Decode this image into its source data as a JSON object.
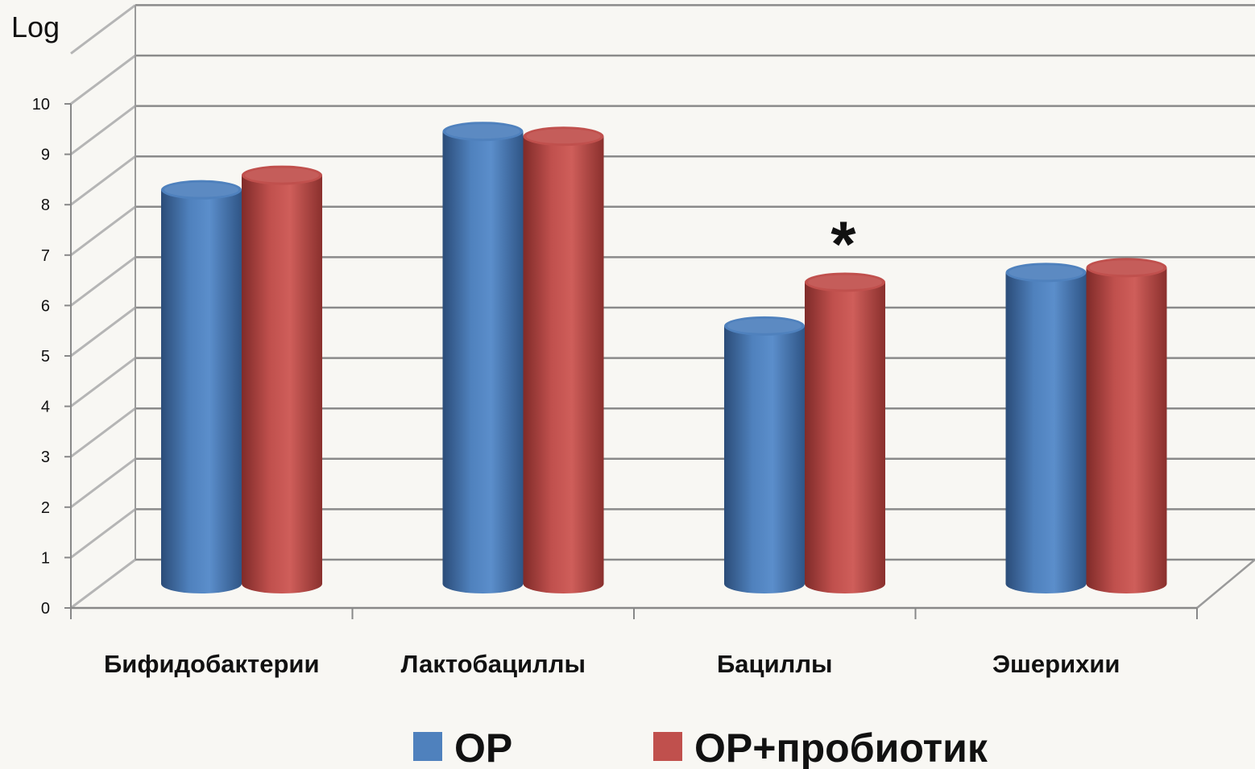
{
  "chart_data": {
    "type": "bar",
    "ylabel": "Log",
    "ylim": [
      0,
      10
    ],
    "yticks": [
      "0",
      "1",
      "2",
      "3",
      "4",
      "5",
      "6",
      "7",
      "8",
      "9",
      "10"
    ],
    "categories": [
      "Бифидобактерии",
      "Лактобациллы",
      "Бациллы",
      "Эшерихии"
    ],
    "series": [
      {
        "name": "ОР",
        "color": "#4f81bd",
        "values": [
          8.1,
          9.3,
          5.3,
          6.4
        ]
      },
      {
        "name": "ОР+пробиотик",
        "color": "#c0504d",
        "values": [
          8.4,
          9.2,
          6.2,
          6.5
        ]
      }
    ],
    "annotations": [
      {
        "text": "*",
        "category": "Бациллы"
      }
    ],
    "grid": true,
    "legend": "bottom"
  }
}
